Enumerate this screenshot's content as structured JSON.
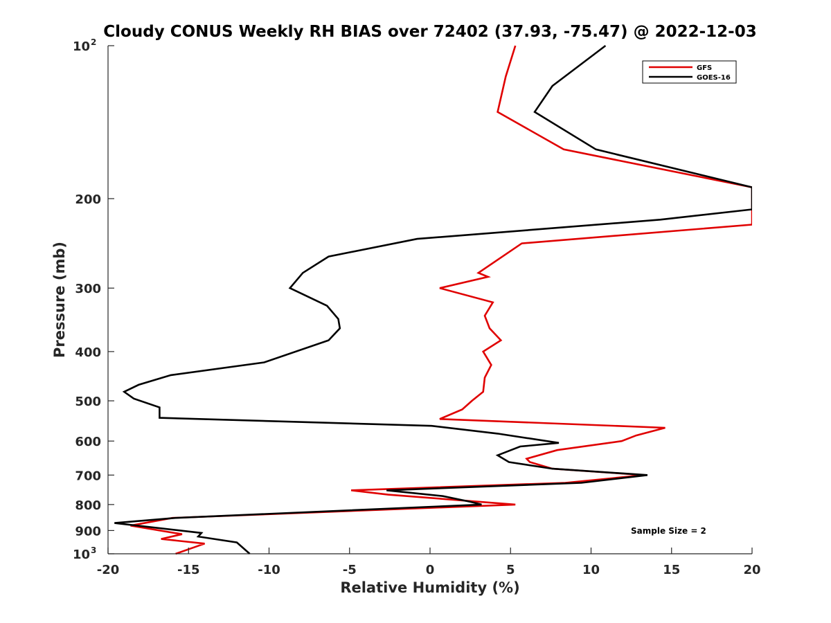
{
  "chart_data": {
    "type": "line",
    "title": "Cloudy CONUS Weekly RH BIAS over 72402 (37.93, -75.47) @ 2022-12-03",
    "xlabel": "Relative Humidity (%)",
    "ylabel": "Pressure (mb)",
    "xlim": [
      -20,
      20
    ],
    "ylim": [
      100,
      1000
    ],
    "y_scale": "log",
    "y_reversed": true,
    "x_ticks": [
      -20,
      -15,
      -10,
      -5,
      0,
      5,
      10,
      15,
      20
    ],
    "x_tick_labels": [
      "-20",
      "-15",
      "-10",
      "-5",
      "0",
      "5",
      "10",
      "15",
      "20"
    ],
    "y_ticks": [
      {
        "value": 100,
        "label": "10",
        "exp": "2"
      },
      {
        "value": 200,
        "label": "200"
      },
      {
        "value": 300,
        "label": "300"
      },
      {
        "value": 400,
        "label": "400"
      },
      {
        "value": 500,
        "label": "500"
      },
      {
        "value": 600,
        "label": "600"
      },
      {
        "value": 700,
        "label": "700"
      },
      {
        "value": 800,
        "label": "800"
      },
      {
        "value": 900,
        "label": "900"
      },
      {
        "value": 1000,
        "label": "10",
        "exp": "3"
      }
    ],
    "grid": false,
    "legend_position": "top-right",
    "annotation": "Sample Size = 2",
    "series": [
      {
        "name": "GFS",
        "color": "#e00000",
        "points": [
          [
            5.3,
            100
          ],
          [
            4.7,
            115
          ],
          [
            4.2,
            135
          ],
          [
            8.3,
            160
          ],
          [
            20.0,
            190
          ],
          [
            20.0,
            225
          ],
          [
            5.7,
            245
          ],
          [
            3.0,
            280
          ],
          [
            3.6,
            285
          ],
          [
            0.6,
            300
          ],
          [
            3.9,
            320
          ],
          [
            3.4,
            340
          ],
          [
            3.7,
            360
          ],
          [
            4.4,
            380
          ],
          [
            3.3,
            400
          ],
          [
            3.8,
            425
          ],
          [
            3.4,
            450
          ],
          [
            3.3,
            480
          ],
          [
            2.6,
            500
          ],
          [
            2.0,
            520
          ],
          [
            0.6,
            543
          ],
          [
            14.6,
            565
          ],
          [
            12.8,
            585
          ],
          [
            11.9,
            600
          ],
          [
            7.9,
            625
          ],
          [
            6.0,
            650
          ],
          [
            6.2,
            660
          ],
          [
            7.6,
            680
          ],
          [
            13.3,
            700
          ],
          [
            8.4,
            725
          ],
          [
            -4.9,
            750
          ],
          [
            -2.6,
            765
          ],
          [
            5.3,
            800
          ],
          [
            -16.0,
            850
          ],
          [
            -18.6,
            880
          ],
          [
            -15.4,
            915
          ],
          [
            -16.7,
            935
          ],
          [
            -14.0,
            955
          ],
          [
            -15.8,
            1000
          ]
        ]
      },
      {
        "name": "GOES-16",
        "color": "#000000",
        "points": [
          [
            10.9,
            100
          ],
          [
            7.6,
            120
          ],
          [
            6.5,
            135
          ],
          [
            10.3,
            160
          ],
          [
            20.0,
            190
          ],
          [
            20.0,
            210
          ],
          [
            14.3,
            220
          ],
          [
            -0.8,
            240
          ],
          [
            -6.3,
            260
          ],
          [
            -7.9,
            280
          ],
          [
            -8.7,
            300
          ],
          [
            -6.4,
            325
          ],
          [
            -5.7,
            345
          ],
          [
            -5.6,
            360
          ],
          [
            -6.3,
            380
          ],
          [
            -10.3,
            420
          ],
          [
            -16.1,
            445
          ],
          [
            -18.1,
            465
          ],
          [
            -19.0,
            480
          ],
          [
            -18.4,
            495
          ],
          [
            -16.8,
            515
          ],
          [
            -16.8,
            540
          ],
          [
            0.1,
            560
          ],
          [
            4.2,
            580
          ],
          [
            8.0,
            605
          ],
          [
            5.6,
            615
          ],
          [
            4.2,
            640
          ],
          [
            4.9,
            660
          ],
          [
            7.6,
            680
          ],
          [
            13.5,
            700
          ],
          [
            9.4,
            725
          ],
          [
            -2.7,
            750
          ],
          [
            0.8,
            770
          ],
          [
            2.5,
            790
          ],
          [
            3.2,
            800
          ],
          [
            -15.8,
            850
          ],
          [
            -19.6,
            870
          ],
          [
            -14.2,
            910
          ],
          [
            -14.4,
            925
          ],
          [
            -12.0,
            950
          ],
          [
            -11.2,
            1000
          ]
        ]
      }
    ]
  }
}
